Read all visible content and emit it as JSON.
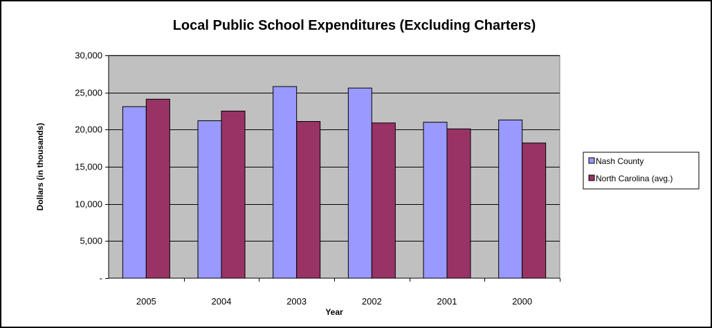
{
  "chart_data": {
    "type": "bar",
    "title": "Local Public School Expenditures (Excluding Charters)",
    "xlabel": "Year",
    "ylabel": "Dollars (in thousands)",
    "categories": [
      "2005",
      "2004",
      "2003",
      "2002",
      "2001",
      "2000"
    ],
    "series": [
      {
        "name": "Nash County",
        "values": [
          23100,
          21200,
          25800,
          25600,
          21000,
          21300
        ],
        "color": "#9999ff"
      },
      {
        "name": "North Carolina (avg.)",
        "values": [
          24100,
          22500,
          21100,
          20900,
          20100,
          18200
        ],
        "color": "#993366"
      }
    ],
    "ylim": [
      0,
      30000
    ],
    "yticks": [
      0,
      5000,
      10000,
      15000,
      20000,
      25000,
      30000
    ],
    "ytick_labels": [
      "-",
      "5,000",
      "10,000",
      "15,000",
      "20,000",
      "25,000",
      "30,000"
    ],
    "grid": true,
    "plot_background": "#c0c0c0",
    "legend_position": "right"
  }
}
